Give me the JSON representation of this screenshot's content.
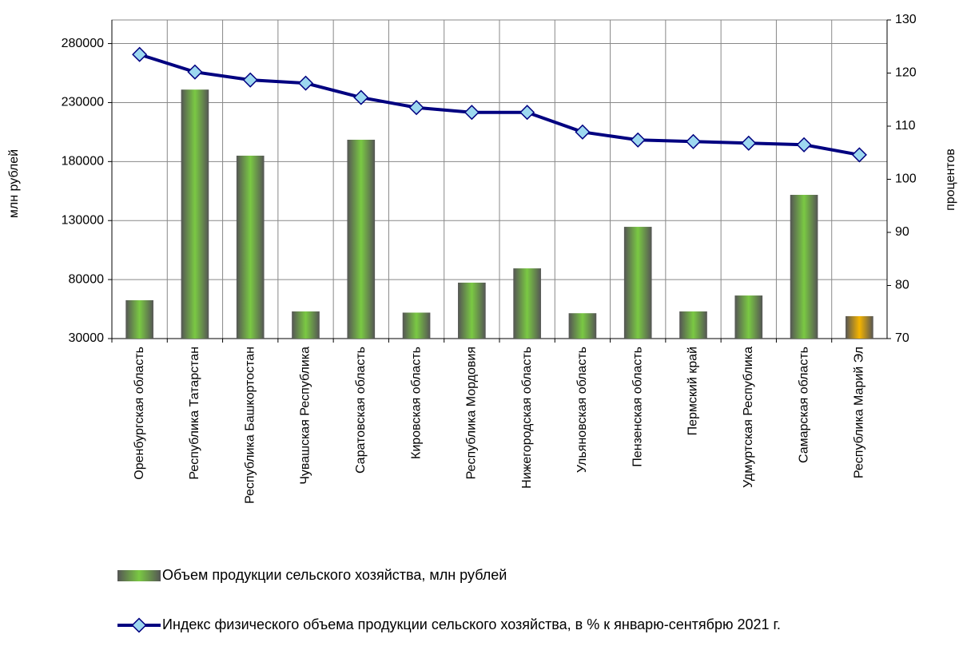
{
  "chart_data": {
    "type": "combo",
    "y_label": "млн рублей",
    "y2_label": "процентов",
    "categories": [
      "Оренбургская область",
      "Республика Татарстан",
      "Республика Башкортостан",
      "Чувашская Республика",
      "Саратовская область",
      "Кировская область",
      "Республика Мордовия",
      "Нижегородская область",
      "Ульяновская область",
      "Пензенская область",
      "Пермский край",
      "Удмуртская Республика",
      "Самарская область",
      "Республика Марий Эл"
    ],
    "series": [
      {
        "name": "Объем продукции сельского хозяйства, млн рублей",
        "type": "bar",
        "color": "#7ac943",
        "colors": [
          "#7ac943",
          "#7ac943",
          "#7ac943",
          "#7ac943",
          "#7ac943",
          "#7ac943",
          "#7ac943",
          "#7ac943",
          "#7ac943",
          "#7ac943",
          "#7ac943",
          "#7ac943",
          "#7ac943",
          "#f5b400"
        ],
        "values": [
          62500,
          241000,
          185000,
          53000,
          198500,
          52000,
          77400,
          89500,
          51500,
          124700,
          53000,
          66500,
          151800,
          49000
        ]
      },
      {
        "name": "Индекс физического объема продукции сельского хозяйства, в % к январю-сентябрю 2021 г.",
        "type": "line",
        "axis": "y2",
        "color": "#000080",
        "marker_color": "#9dd8f0",
        "values": [
          123.5,
          120.2,
          118.7,
          118.1,
          115.4,
          113.5,
          112.6,
          112.6,
          108.9,
          107.4,
          107.1,
          106.8,
          106.5,
          104.6
        ]
      }
    ],
    "ylim": [
      30000,
      300000
    ],
    "yticks": [
      30000,
      80000,
      130000,
      180000,
      230000,
      280000
    ],
    "y2lim": [
      70,
      130
    ],
    "y2ticks": [
      70,
      80,
      90,
      100,
      110,
      120,
      130
    ],
    "grid": true
  }
}
